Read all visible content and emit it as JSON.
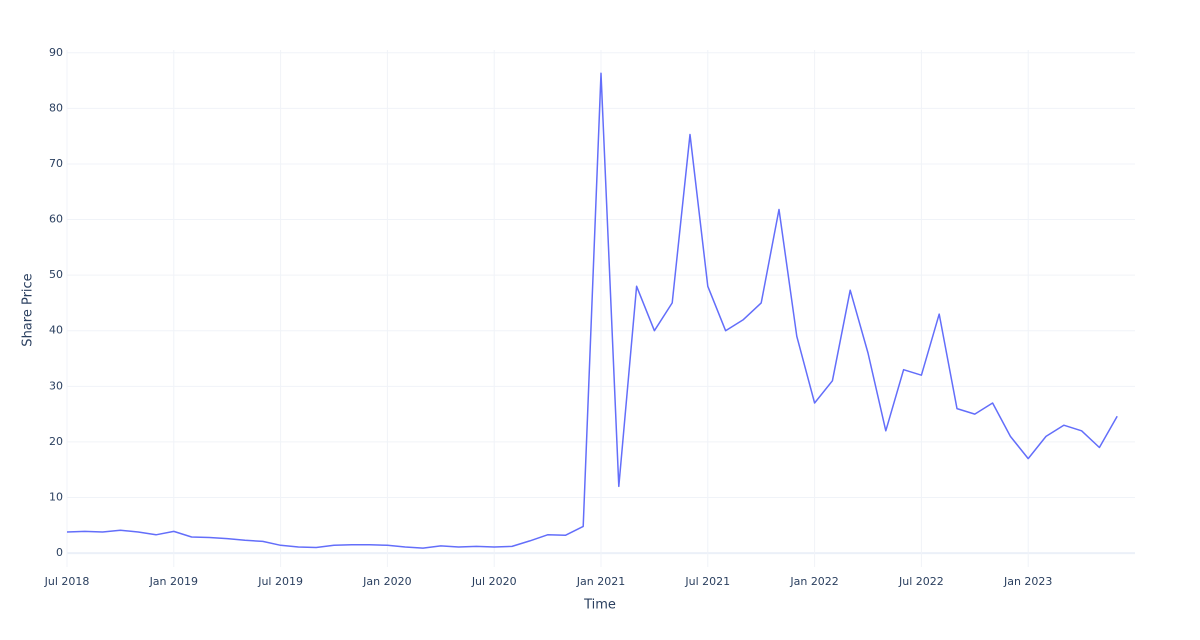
{
  "chart_data": {
    "type": "line",
    "x_label": "Time",
    "y_label": "Share Price",
    "x": [
      "2018-07",
      "2018-08",
      "2018-09",
      "2018-10",
      "2018-11",
      "2018-12",
      "2019-01",
      "2019-02",
      "2019-03",
      "2019-04",
      "2019-05",
      "2019-06",
      "2019-07",
      "2019-08",
      "2019-09",
      "2019-10",
      "2019-11",
      "2019-12",
      "2020-01",
      "2020-02",
      "2020-03",
      "2020-04",
      "2020-05",
      "2020-06",
      "2020-07",
      "2020-08",
      "2020-09",
      "2020-10",
      "2020-11",
      "2020-12",
      "2021-01",
      "2021-02",
      "2021-03",
      "2021-04",
      "2021-05",
      "2021-06",
      "2021-07",
      "2021-08",
      "2021-09",
      "2021-10",
      "2021-11",
      "2021-12",
      "2022-01",
      "2022-02",
      "2022-03",
      "2022-04",
      "2022-05",
      "2022-06",
      "2022-07",
      "2022-08",
      "2022-09",
      "2022-10",
      "2022-11",
      "2022-12",
      "2023-01",
      "2023-02",
      "2023-03",
      "2023-04",
      "2023-05",
      "2023-06"
    ],
    "series": [
      {
        "color": "#636efa",
        "values": [
          3.8,
          3.9,
          3.8,
          4.1,
          3.8,
          3.3,
          3.9,
          2.9,
          2.8,
          2.6,
          2.3,
          2.1,
          1.4,
          1.1,
          1.0,
          1.4,
          1.5,
          1.5,
          1.4,
          1.1,
          0.9,
          1.3,
          1.1,
          1.2,
          1.1,
          1.2,
          2.2,
          3.3,
          3.2,
          4.8,
          86.3,
          12.0,
          48.0,
          40.0,
          45.0,
          75.3,
          48.0,
          40.0,
          42.0,
          45.0,
          61.8,
          39.0,
          27.0,
          31.0,
          47.3,
          36.0,
          22.0,
          33.0,
          32.0,
          43.0,
          26.0,
          25.0,
          27.0,
          21.0,
          17.0,
          21.0,
          23.0,
          22.0,
          19.0,
          24.6
        ]
      }
    ],
    "xlim": [
      "2018-07",
      "2023-07"
    ],
    "xticks": [
      {
        "value": "2018-07",
        "label": "Jul 2018"
      },
      {
        "value": "2019-01",
        "label": "Jan 2019"
      },
      {
        "value": "2019-07",
        "label": "Jul 2019"
      },
      {
        "value": "2020-01",
        "label": "Jan 2020"
      },
      {
        "value": "2020-07",
        "label": "Jul 2020"
      },
      {
        "value": "2021-01",
        "label": "Jan 2021"
      },
      {
        "value": "2021-07",
        "label": "Jul 2021"
      },
      {
        "value": "2022-01",
        "label": "Jan 2022"
      },
      {
        "value": "2022-07",
        "label": "Jul 2022"
      },
      {
        "value": "2023-01",
        "label": "Jan 2023"
      }
    ],
    "ylim": [
      -2.5,
      90.5
    ],
    "yticks": [
      0,
      10,
      20,
      30,
      40,
      50,
      60,
      70,
      80,
      90
    ],
    "grid": true
  }
}
